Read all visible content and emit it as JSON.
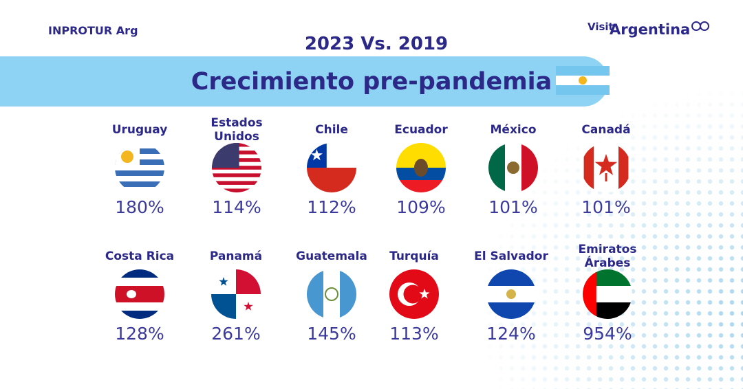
{
  "header": {
    "org": "INPROTUR Arg",
    "brand_visit": "Visit",
    "brand_name": "Argentina",
    "subtitle": "2023 Vs. 2019",
    "title": "Crecimiento pre-pandemia"
  },
  "countries": [
    {
      "name": "Uruguay",
      "growth": "180%"
    },
    {
      "name": "Estados Unidos",
      "growth": "114%"
    },
    {
      "name": "Chile",
      "growth": "112%"
    },
    {
      "name": "Ecuador",
      "growth": "109%"
    },
    {
      "name": "México",
      "growth": "101%"
    },
    {
      "name": "Canadá",
      "growth": "101%"
    },
    {
      "name": "Costa Rica",
      "growth": "128%"
    },
    {
      "name": "Panamá",
      "growth": "261%"
    },
    {
      "name": "Guatemala",
      "growth": "145%"
    },
    {
      "name": "Turquía",
      "growth": "113%"
    },
    {
      "name": "El Salvador",
      "growth": "124%"
    },
    {
      "name": "Emiratos Árabes",
      "growth": "954%"
    }
  ]
}
